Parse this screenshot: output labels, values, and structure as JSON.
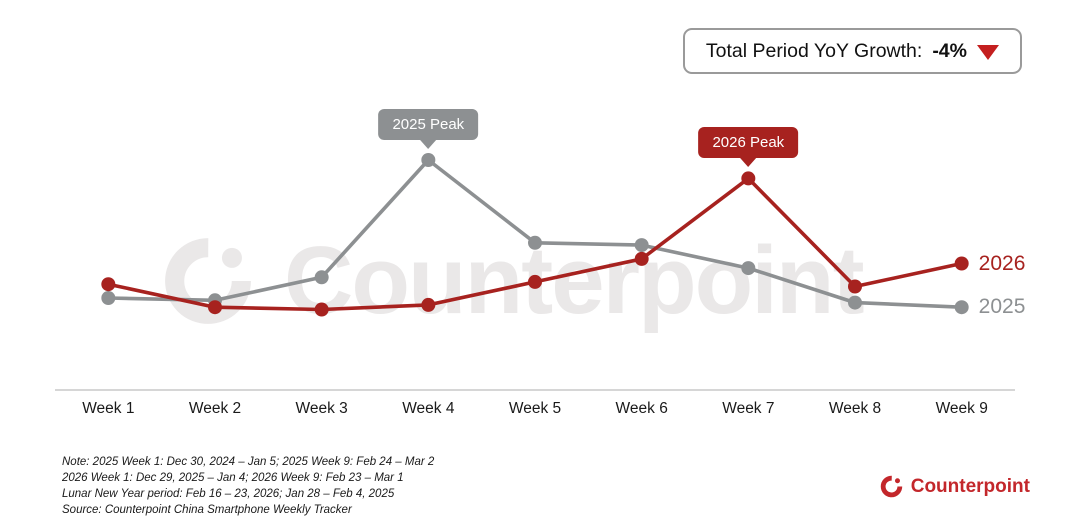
{
  "yoy_box": {
    "label": "Total Period YoY Growth:",
    "value": "-4%"
  },
  "watermark": "Counterpoint",
  "notes": [
    "Note: 2025 Week 1: Dec 30, 2024 – Jan 5; 2025 Week 9: Feb 24 – Mar 2",
    "2026 Week 1: Dec 29, 2025 – Jan 4; 2026 Week 9: Feb 23 – Mar 1",
    "Lunar New Year period: Feb 16 – 23, 2026; Jan 28 – Feb 4, 2025",
    "Source: Counterpoint China Smartphone Weekly Tracker"
  ],
  "brand": {
    "name": "Counterpoint"
  },
  "colors": {
    "series_2025_gray": "#8d9092",
    "series_2026_red": "#a7221f",
    "brand_red": "#c3272b",
    "triangle_red": "#c41f1f"
  },
  "chart_data": {
    "type": "line",
    "title": "",
    "categories": [
      "Week 1",
      "Week 2",
      "Week 3",
      "Week 4",
      "Week 5",
      "Week 6",
      "Week 7",
      "Week 8",
      "Week 9"
    ],
    "series": [
      {
        "name": "2025",
        "color": "#8d9092",
        "values": [
          40,
          39,
          49,
          100,
          64,
          63,
          53,
          38,
          36
        ],
        "peak_label": "2025 Peak",
        "peak_category": "Week 4"
      },
      {
        "name": "2026",
        "color": "#a7221f",
        "values": [
          46,
          36,
          35,
          37,
          47,
          57,
          92,
          45,
          55
        ],
        "peak_label": "2026 Peak",
        "peak_category": "Week 7"
      }
    ],
    "ylim": [
      0,
      110
    ],
    "y_axis": "unlabeled (values estimated from line positions, relative index)",
    "grid": false,
    "x_axis_line": true,
    "legend_position": "line-end labels",
    "annotation": "Total Period YoY Growth: -4%"
  }
}
